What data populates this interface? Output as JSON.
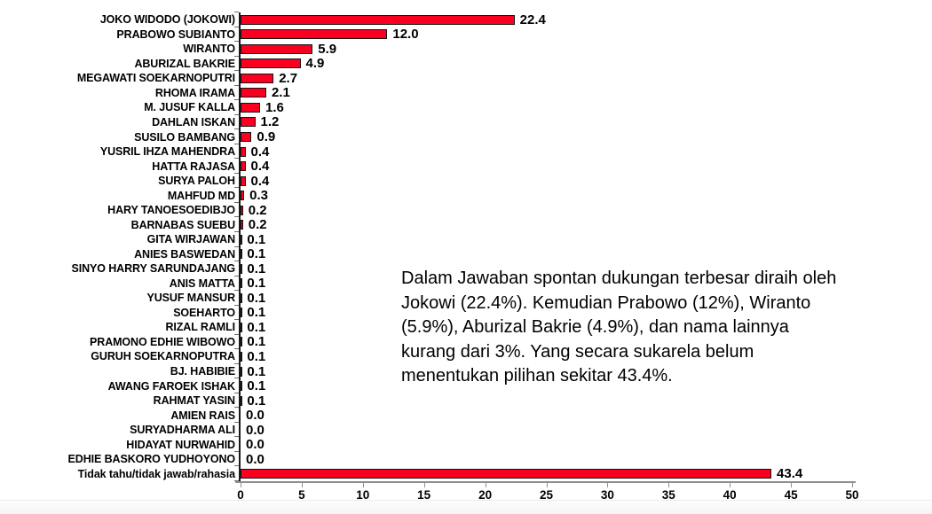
{
  "chart_data": {
    "type": "bar",
    "orientation": "horizontal",
    "title": "",
    "xlabel": "",
    "ylabel": "",
    "xlim": [
      0,
      50
    ],
    "x_ticks": [
      0,
      5,
      10,
      15,
      20,
      25,
      30,
      35,
      40,
      45,
      50
    ],
    "grid": false,
    "bar_color": "#fa0020",
    "bar_border_color": "#1a1214",
    "categories": [
      "JOKO WIDODO (JOKOWI)",
      "PRABOWO SUBIANTO",
      "WIRANTO",
      "ABURIZAL BAKRIE",
      "MEGAWATI SOEKARNOPUTRI",
      "RHOMA IRAMA",
      "M. JUSUF KALLA",
      "DAHLAN ISKAN",
      "SUSILO BAMBANG",
      "YUSRIL IHZA MAHENDRA",
      "HATTA RAJASA",
      "SURYA PALOH",
      "MAHFUD MD",
      "HARY TANOESOEDIBJO",
      "BARNABAS SUEBU",
      "GITA WIRJAWAN",
      "ANIES BASWEDAN",
      "SINYO HARRY SARUNDAJANG",
      "ANIS MATTA",
      "YUSUF MANSUR",
      "SOEHARTO",
      "RIZAL RAMLI",
      "PRAMONO EDHIE WIBOWO",
      "GURUH SOEKARNOPUTRA",
      "BJ. HABIBIE",
      "AWANG FAROEK ISHAK",
      "RAHMAT YASIN",
      "AMIEN RAIS",
      "SURYADHARMA ALI",
      "HIDAYAT NURWAHID",
      "EDHIE BASKORO YUDHOYONO",
      "Tidak tahu/tidak jawab/rahasia"
    ],
    "values": [
      22.4,
      12.0,
      5.9,
      4.9,
      2.7,
      2.1,
      1.6,
      1.2,
      0.9,
      0.4,
      0.4,
      0.4,
      0.3,
      0.2,
      0.2,
      0.1,
      0.1,
      0.1,
      0.1,
      0.1,
      0.1,
      0.1,
      0.1,
      0.1,
      0.1,
      0.1,
      0.1,
      0.0,
      0.0,
      0.0,
      0.0,
      43.4
    ],
    "value_labels": [
      "22.4",
      "12.0",
      "5.9",
      "4.9",
      "2.7",
      "2.1",
      "1.6",
      "1.2",
      "0.9",
      "0.4",
      "0.4",
      "0.4",
      "0.3",
      "0.2",
      "0.2",
      "0.1",
      "0.1",
      "0.1",
      "0.1",
      "0.1",
      "0.1",
      "0.1",
      "0.1",
      "0.1",
      "0.1",
      "0.1",
      "0.1",
      "0.0",
      "0.0",
      "0.0",
      "0.0",
      "43.4"
    ]
  },
  "annotation": {
    "text": "Dalam Jawaban spontan dukungan terbesar diraih oleh Jokowi (22.4%). Kemudian Prabowo (12%), Wiranto (5.9%), Aburizal Bakrie (4.9%), dan nama lainnya kurang dari 3%. Yang secara sukarela belum menentukan pilihan sekitar 43.4%."
  }
}
